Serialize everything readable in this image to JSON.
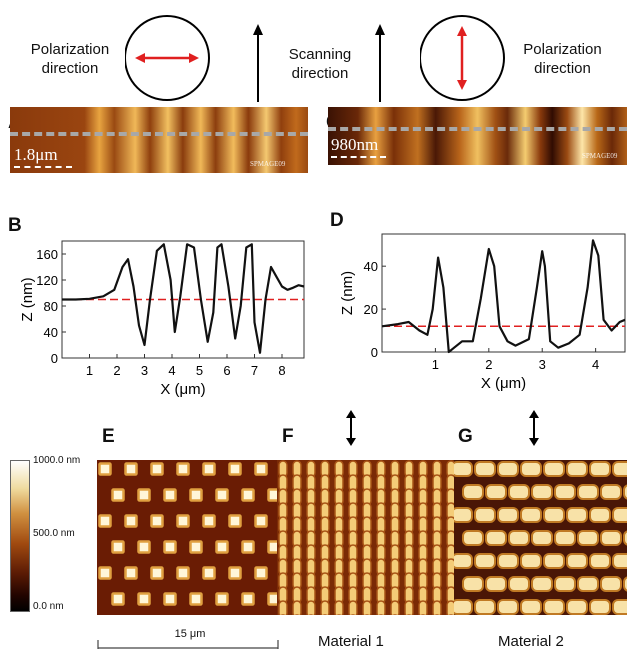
{
  "top": {
    "pol_left": "Polarization\ndirection",
    "scan": "Scanning\ndirection",
    "pol_right": "Polarization\ndirection"
  },
  "panels": {
    "A": {
      "letter": "A",
      "scale": "1.8μm",
      "stamp": "SPMAGE09"
    },
    "C": {
      "letter": "C",
      "scale": "980nm",
      "stamp": "SPMAGE09"
    },
    "B": {
      "letter": "B"
    },
    "D": {
      "letter": "D"
    },
    "E": {
      "letter": "E"
    },
    "F": {
      "letter": "F"
    },
    "G": {
      "letter": "G"
    }
  },
  "colorbar": {
    "max": "1000.0 nm",
    "mid": "500.0 nm",
    "min": "0.0 nm"
  },
  "bottom": {
    "scale": "15 μm",
    "material1": "Material 1",
    "material2": "Material 2"
  },
  "chart_data": [
    {
      "type": "line",
      "panel": "B",
      "xlabel": "X (μm)",
      "ylabel": "Z (nm)",
      "xlim": [
        0,
        8.8
      ],
      "ylim": [
        0,
        180
      ],
      "xticks": [
        "1",
        "2",
        "3",
        "4",
        "5",
        "6",
        "7",
        "8"
      ],
      "yticks": [
        "0",
        "40",
        "80",
        "120",
        "160"
      ],
      "reference_level": 90,
      "series": [
        {
          "x": [
            0,
            0.5,
            1,
            1.5,
            1.9,
            2.2,
            2.4,
            2.6,
            2.8,
            3.0,
            3.2,
            3.45,
            3.7,
            3.95,
            4.1,
            4.3,
            4.55,
            4.8,
            5.05,
            5.3,
            5.5,
            5.65,
            5.8,
            6.05,
            6.3,
            6.5,
            6.7,
            6.9,
            7.0,
            7.2,
            7.4,
            7.6,
            7.8,
            8.0,
            8.2,
            8.4,
            8.6,
            8.8
          ],
          "y": [
            90,
            90,
            91,
            95,
            105,
            140,
            152,
            110,
            50,
            20,
            90,
            165,
            175,
            120,
            40,
            95,
            175,
            170,
            90,
            25,
            70,
            170,
            175,
            110,
            30,
            80,
            170,
            175,
            55,
            8,
            90,
            140,
            125,
            110,
            105,
            108,
            112,
            110
          ]
        }
      ]
    },
    {
      "type": "line",
      "panel": "D",
      "xlabel": "X (μm)",
      "ylabel": "Z (nm)",
      "xlim": [
        0,
        4.55
      ],
      "ylim": [
        0,
        55
      ],
      "xticks": [
        "1",
        "2",
        "3",
        "4"
      ],
      "yticks": [
        "0",
        "20",
        "40"
      ],
      "reference_level": 12,
      "series": [
        {
          "x": [
            0,
            0.3,
            0.5,
            0.7,
            0.85,
            0.95,
            1.05,
            1.15,
            1.25,
            1.35,
            1.5,
            1.7,
            1.85,
            2.0,
            2.1,
            2.2,
            2.35,
            2.5,
            2.75,
            2.9,
            3.0,
            3.05,
            3.15,
            3.3,
            3.5,
            3.7,
            3.85,
            3.95,
            4.05,
            4.15,
            4.3,
            4.45,
            4.55
          ],
          "y": [
            12,
            13,
            14,
            10,
            8,
            20,
            44,
            30,
            0,
            2,
            5,
            5,
            25,
            48,
            40,
            12,
            5,
            3,
            6,
            30,
            47,
            40,
            5,
            2,
            4,
            8,
            30,
            52,
            45,
            15,
            10,
            14,
            15
          ]
        }
      ]
    }
  ]
}
